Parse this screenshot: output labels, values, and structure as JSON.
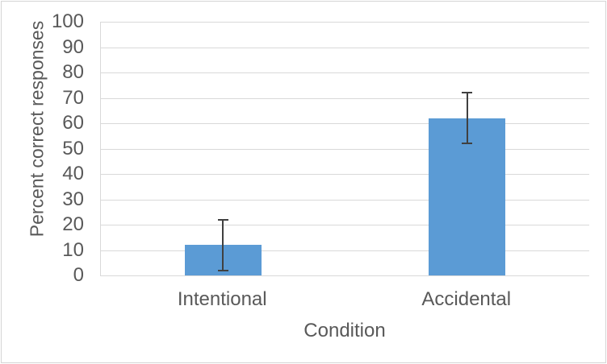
{
  "chart_data": {
    "type": "bar",
    "categories": [
      "Intentional",
      "Accidental"
    ],
    "values": [
      12,
      62
    ],
    "error": [
      10,
      10
    ],
    "title": "",
    "xlabel": "Condition",
    "ylabel": "Percent correct responses",
    "ylim": [
      0,
      100
    ],
    "ytick_step": 10,
    "ytick_labels": [
      "0",
      "10",
      "20",
      "30",
      "40",
      "50",
      "60",
      "70",
      "80",
      "90",
      "100"
    ],
    "grid": true,
    "legend": "none",
    "colors": {
      "bar": "#5B9BD5",
      "error_bar": "#404040",
      "gridline": "#D9D9D9",
      "axis_line": "#D9D9D9",
      "text": "#595959",
      "background": "#FFFFFF",
      "frame_border": "#D4D4D4"
    }
  }
}
